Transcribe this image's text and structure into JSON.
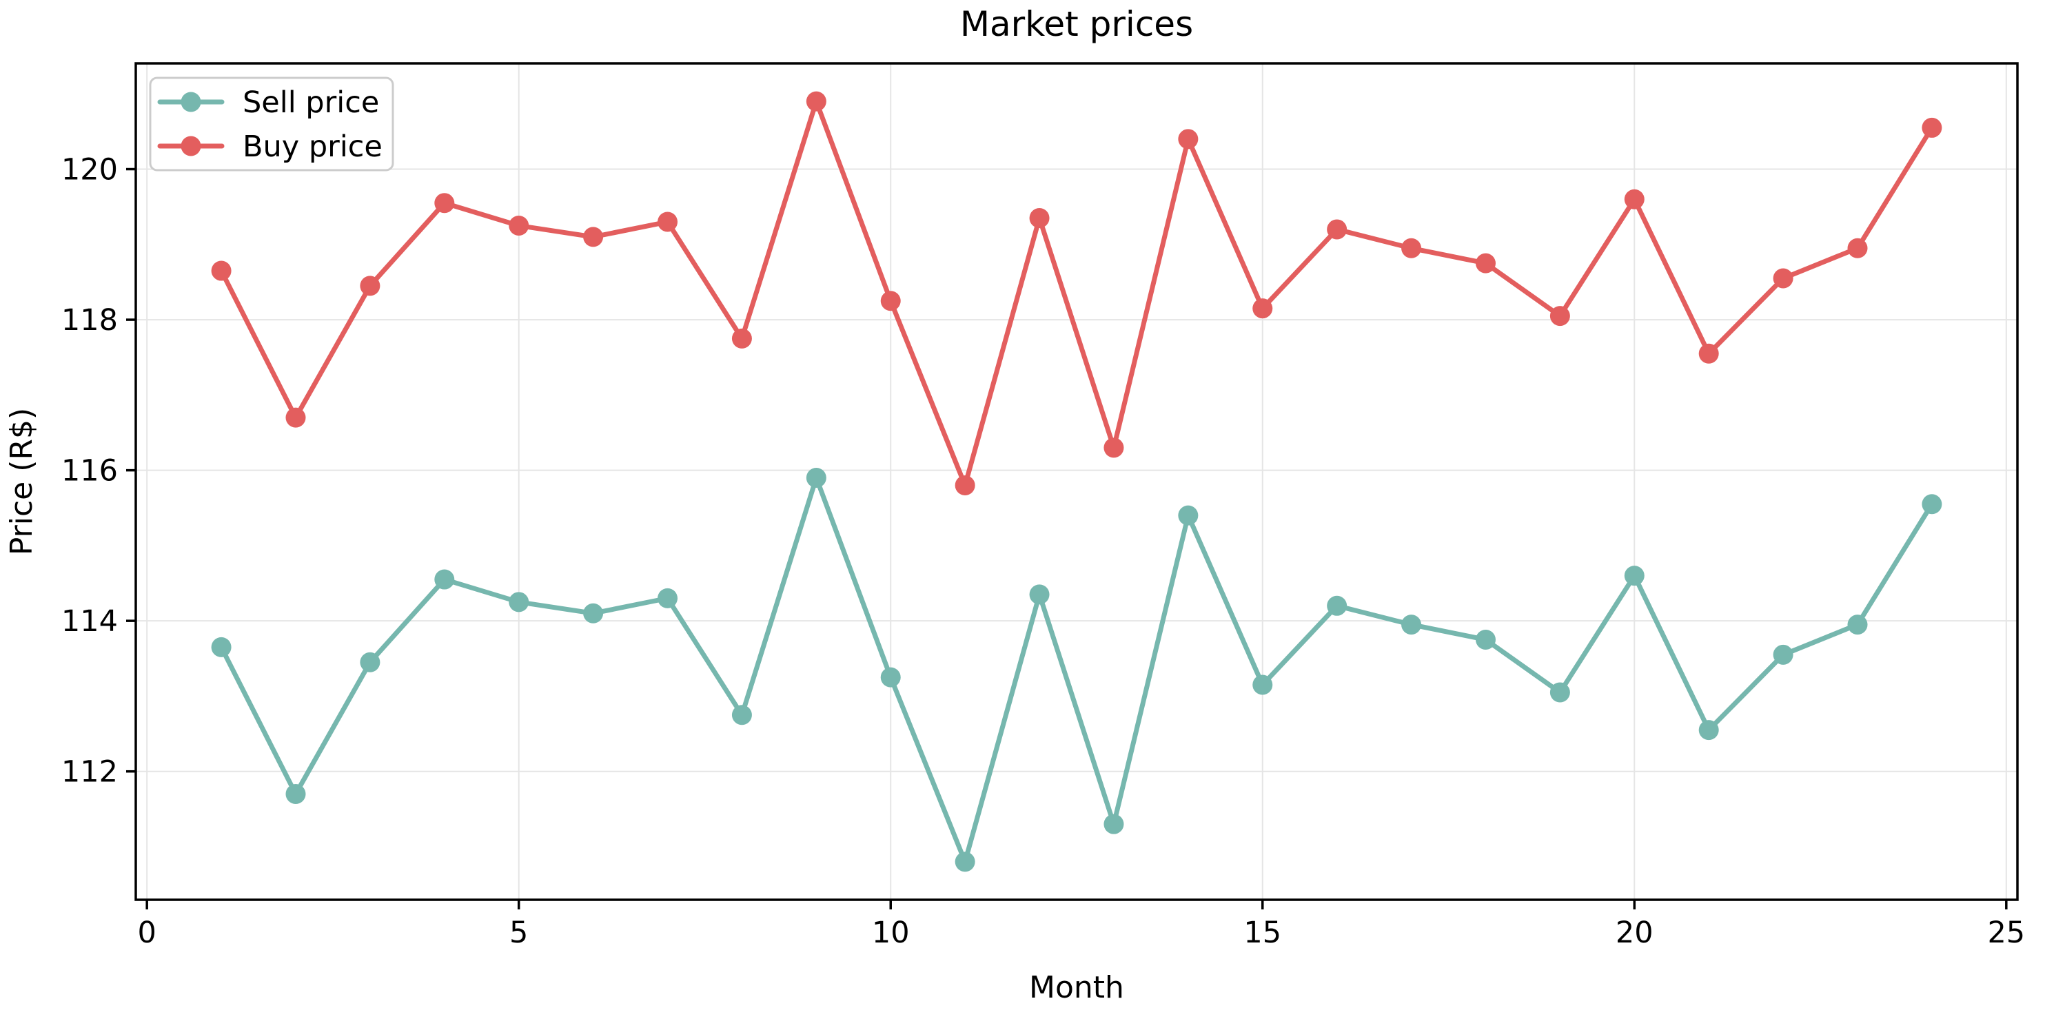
{
  "figure": {
    "background": "#ffffff",
    "spine_color": "#000000",
    "grid_color": "#e5e5e5",
    "tick_color": "#000000"
  },
  "chart_data": {
    "type": "line",
    "title": "Market prices",
    "xlabel": "Month",
    "ylabel": "Price (R$)",
    "xlim": [
      -0.15,
      25.15
    ],
    "ylim": [
      110.295,
      121.405
    ],
    "x_ticks": [
      0,
      5,
      10,
      15,
      20,
      25
    ],
    "y_ticks": [
      112,
      114,
      116,
      118,
      120
    ],
    "grid": true,
    "legend_position": "upper left",
    "x": [
      1,
      2,
      3,
      4,
      5,
      6,
      7,
      8,
      9,
      10,
      11,
      12,
      13,
      14,
      15,
      16,
      17,
      18,
      19,
      20,
      21,
      22,
      23,
      24
    ],
    "series": [
      {
        "name": "Sell price",
        "color": "#76b7ae",
        "values": [
          113.65,
          111.7,
          113.45,
          114.55,
          114.25,
          114.1,
          114.3,
          112.75,
          115.9,
          113.25,
          110.8,
          114.35,
          111.3,
          115.4,
          113.15,
          114.2,
          113.95,
          113.75,
          113.05,
          114.6,
          112.55,
          113.55,
          113.95,
          115.55
        ]
      },
      {
        "name": "Buy price",
        "color": "#e35e5e",
        "values": [
          118.65,
          116.7,
          118.45,
          119.55,
          119.25,
          119.1,
          119.3,
          117.75,
          120.9,
          118.25,
          115.8,
          119.35,
          116.3,
          120.4,
          118.15,
          119.2,
          118.95,
          118.75,
          118.05,
          119.6,
          117.55,
          118.55,
          118.95,
          120.55
        ]
      }
    ]
  }
}
